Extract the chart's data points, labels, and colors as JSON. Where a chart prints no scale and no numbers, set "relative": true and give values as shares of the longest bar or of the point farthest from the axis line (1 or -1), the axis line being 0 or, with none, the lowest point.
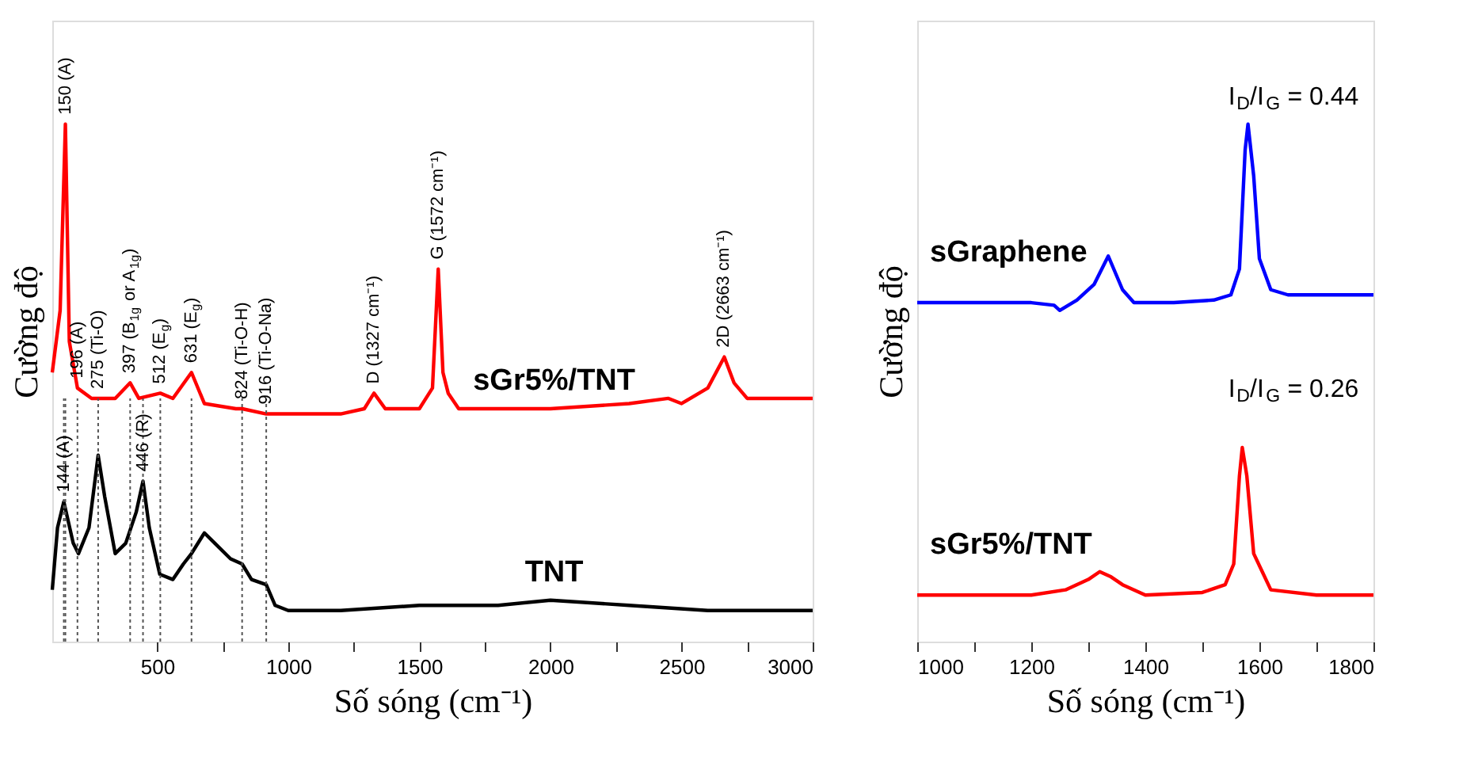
{
  "chart_data": [
    {
      "type": "line",
      "relative": true,
      "tick_labels": "x",
      "grid": false,
      "xlabel": "Số sóng (cm⁻¹)",
      "ylabel": "Cường độ",
      "xlim": [
        100,
        3000
      ],
      "xticks": [
        500,
        {
          "value": 750,
          "label": null
        },
        1000,
        {
          "value": 1250,
          "label": null
        },
        1500,
        {
          "value": 1750,
          "label": null
        },
        2000,
        {
          "value": 2250,
          "label": null
        },
        2500,
        {
          "value": 2750,
          "label": null
        },
        3000
      ],
      "series": [
        {
          "name": "sGr5%/TNT",
          "color": "#ff0000",
          "x": [
            100,
            130,
            150,
            165,
            196,
            250,
            275,
            300,
            340,
            397,
            430,
            512,
            560,
            631,
            680,
            800,
            824,
            916,
            1000,
            1200,
            1290,
            1327,
            1370,
            1500,
            1550,
            1572,
            1590,
            1610,
            1650,
            2000,
            2300,
            2450,
            2500,
            2600,
            2663,
            2700,
            2750,
            3000
          ],
          "values": [
            0.52,
            0.64,
            1.0,
            0.58,
            0.49,
            0.47,
            0.47,
            0.47,
            0.47,
            0.5,
            0.47,
            0.48,
            0.47,
            0.52,
            0.46,
            0.45,
            0.45,
            0.44,
            0.44,
            0.44,
            0.45,
            0.48,
            0.45,
            0.45,
            0.49,
            0.72,
            0.52,
            0.48,
            0.45,
            0.45,
            0.46,
            0.47,
            0.46,
            0.49,
            0.55,
            0.5,
            0.47,
            0.47
          ]
        },
        {
          "name": "TNT",
          "color": "#000000",
          "x": [
            100,
            120,
            144,
            180,
            200,
            240,
            275,
            300,
            340,
            380,
            420,
            446,
            470,
            510,
            560,
            600,
            631,
            680,
            720,
            780,
            824,
            860,
            916,
            950,
            1000,
            1200,
            1500,
            1800,
            2000,
            2300,
            2600,
            3000
          ],
          "values": [
            0.1,
            0.22,
            0.27,
            0.19,
            0.17,
            0.22,
            0.36,
            0.28,
            0.17,
            0.19,
            0.25,
            0.31,
            0.22,
            0.13,
            0.12,
            0.15,
            0.17,
            0.21,
            0.19,
            0.16,
            0.15,
            0.12,
            0.11,
            0.07,
            0.06,
            0.06,
            0.07,
            0.07,
            0.08,
            0.07,
            0.06,
            0.06
          ]
        }
      ],
      "ref_lines": [
        {
          "axis": "x",
          "value": 144,
          "line_style": "dotted"
        },
        {
          "axis": "x",
          "value": 150,
          "line_style": "dotted"
        },
        {
          "axis": "x",
          "value": 196,
          "line_style": "dotted"
        },
        {
          "axis": "x",
          "value": 275,
          "line_style": "dotted"
        },
        {
          "axis": "x",
          "value": 397,
          "line_style": "dotted"
        },
        {
          "axis": "x",
          "value": 446,
          "line_style": "dotted"
        },
        {
          "axis": "x",
          "value": 512,
          "line_style": "dotted"
        },
        {
          "axis": "x",
          "value": 631,
          "line_style": "dotted"
        },
        {
          "axis": "x",
          "value": 824,
          "line_style": "dotted"
        },
        {
          "axis": "x",
          "value": 916,
          "line_style": "dotted"
        }
      ],
      "annotations": [
        {
          "text": "150 (A)",
          "x": 150,
          "y": 1.0
        },
        {
          "text": "196 (A)",
          "x": 196,
          "y": 0.49
        },
        {
          "text": "275 (Ti-O)",
          "x": 275,
          "y": 0.47
        },
        {
          "text": "397 (B$_{1g}$ or A$_{1g}$)",
          "x": 397,
          "y": 0.5
        },
        {
          "text": "512 (E$_{g}$)",
          "x": 512,
          "y": 0.48
        },
        {
          "text": "631 (E$_{g}$)",
          "x": 631,
          "y": 0.52
        },
        {
          "text": "824 (Ti-O-H)",
          "x": 824,
          "y": 0.45
        },
        {
          "text": "916 (Ti-O-Na)",
          "x": 916,
          "y": 0.44
        },
        {
          "text": "D (1327 cm⁻¹)",
          "x": 1327,
          "y": 0.48
        },
        {
          "text": "G (1572 cm⁻¹)",
          "x": 1572,
          "y": 0.72
        },
        {
          "text": "2D (2663 cm⁻¹)",
          "x": 2663,
          "y": 0.55
        },
        {
          "text": "144 (A)",
          "x": 144,
          "y": 0.27
        },
        {
          "text": "446 (R)",
          "x": 446,
          "y": 0.31
        }
      ]
    },
    {
      "type": "line",
      "relative": true,
      "tick_labels": "x",
      "grid": false,
      "xlabel": "Số sóng (cm⁻¹)",
      "ylabel": "Cường độ",
      "xlim": [
        1000,
        1800
      ],
      "xticks": [
        1000,
        {
          "value": 1100,
          "label": null
        },
        1200,
        {
          "value": 1300,
          "label": null
        },
        1400,
        {
          "value": 1500,
          "label": null
        },
        1600,
        {
          "value": 1700,
          "label": null
        },
        1800
      ],
      "series": [
        {
          "name": "sGraphene",
          "color": "#0000ff",
          "x": [
            1000,
            1100,
            1200,
            1240,
            1250,
            1280,
            1310,
            1335,
            1360,
            1380,
            1450,
            1520,
            1550,
            1565,
            1575,
            1580,
            1590,
            1600,
            1620,
            1650,
            1700,
            1800
          ],
          "values": [
            0.655,
            0.655,
            0.655,
            0.65,
            0.64,
            0.66,
            0.69,
            0.745,
            0.68,
            0.655,
            0.655,
            0.66,
            0.67,
            0.72,
            0.95,
            1.0,
            0.9,
            0.74,
            0.68,
            0.67,
            0.67,
            0.67
          ]
        },
        {
          "name": "sGr5%/TNT",
          "color": "#ff0000",
          "x": [
            1000,
            1100,
            1200,
            1260,
            1300,
            1320,
            1340,
            1360,
            1400,
            1500,
            1540,
            1555,
            1565,
            1570,
            1578,
            1590,
            1605,
            1620,
            1700,
            1800
          ],
          "values": [
            0.09,
            0.09,
            0.09,
            0.1,
            0.12,
            0.135,
            0.125,
            0.11,
            0.09,
            0.095,
            0.11,
            0.15,
            0.32,
            0.375,
            0.32,
            0.17,
            0.135,
            0.1,
            0.09,
            0.09
          ]
        }
      ],
      "annotations": [
        "I$_{D}$/I$_{G}$ = 0.44",
        "I$_{D}$/I$_{G}$ = 0.26"
      ]
    }
  ]
}
